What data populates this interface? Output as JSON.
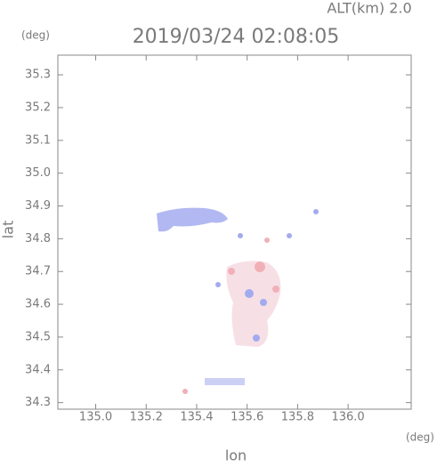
{
  "chart_data": {
    "type": "radar-map",
    "title": "2019/03/24 02:08:05",
    "altitude_label": "ALT(km) 2.0",
    "xlabel": "lon",
    "ylabel": "lat",
    "xunit": "(deg)",
    "yunit": "(deg)",
    "xlim": [
      134.85,
      136.25
    ],
    "ylim": [
      34.28,
      35.36
    ],
    "xticks": [
      {
        "value": 135,
        "label": "135.0"
      },
      135.2,
      135.4,
      135.6,
      135.8,
      {
        "value": 136,
        "label": "136.0"
      }
    ],
    "yticks": [
      34.3,
      34.4,
      34.5,
      34.6,
      34.7,
      34.8,
      34.9,
      {
        "value": 35,
        "label": "35.0"
      },
      35.1,
      35.2,
      35.3
    ]
  }
}
